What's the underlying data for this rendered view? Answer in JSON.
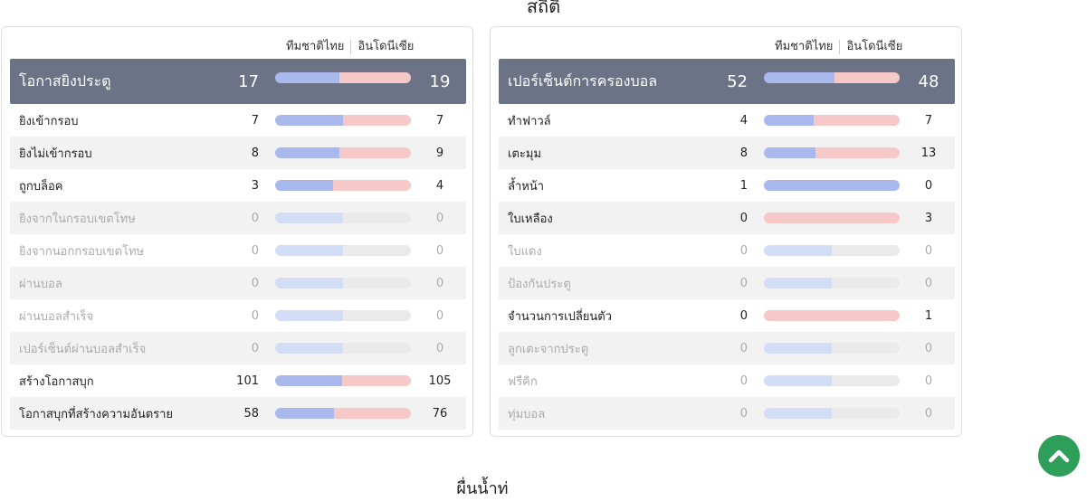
{
  "title": "สถิติ",
  "next_title": "ผื่นน้ำท่",
  "team_left": "ทีมชาติไทย",
  "team_right": "อินโดนีเซีย",
  "colors": {
    "left": "#a9b9ee",
    "right": "#f7c8c8",
    "header": "#6c7387",
    "button": "#2e9e5b"
  },
  "panels": [
    {
      "header": {
        "label": "โอกาสยิงประตู",
        "left": "17",
        "right": "19"
      },
      "rows": [
        {
          "label": "ยิงเข้ากรอบ",
          "left": "7",
          "right": "7"
        },
        {
          "label": "ยิงไม่เข้ากรอบ",
          "left": "8",
          "right": "9"
        },
        {
          "label": "ถูกบล็อค",
          "left": "3",
          "right": "4"
        },
        {
          "label": "ยิงจากในกรอบเขตโทษ",
          "left": "0",
          "right": "0"
        },
        {
          "label": "ยิงจากนอกกรอบเขตโทษ",
          "left": "0",
          "right": "0"
        },
        {
          "label": "ผ่านบอล",
          "left": "0",
          "right": "0"
        },
        {
          "label": "ผ่านบอลสำเร็จ",
          "left": "0",
          "right": "0"
        },
        {
          "label": "เปอร์เซ็นต์ผ่านบอลสำเร็จ",
          "left": "0",
          "right": "0"
        },
        {
          "label": "สร้างโอกาสบุก",
          "left": "101",
          "right": "105"
        },
        {
          "label": "โอกาสบุกที่สร้างความอันตราย",
          "left": "58",
          "right": "76"
        }
      ]
    },
    {
      "header": {
        "label": "เปอร์เซ็นต์การครองบอล",
        "left": "52",
        "right": "48"
      },
      "rows": [
        {
          "label": "ทำฟาวล์",
          "left": "4",
          "right": "7"
        },
        {
          "label": "เตะมุม",
          "left": "8",
          "right": "13"
        },
        {
          "label": "ล้ำหน้า",
          "left": "1",
          "right": "0"
        },
        {
          "label": "ใบเหลือง",
          "left": "0",
          "right": "3"
        },
        {
          "label": "ใบแดง",
          "left": "0",
          "right": "0"
        },
        {
          "label": "ป้องกันประตู",
          "left": "0",
          "right": "0"
        },
        {
          "label": "จำนวนการเปลี่ยนตัว",
          "left": "0",
          "right": "1"
        },
        {
          "label": "ลูกเตะจากประตู",
          "left": "0",
          "right": "0"
        },
        {
          "label": "ฟรีคิก",
          "left": "0",
          "right": "0"
        },
        {
          "label": "ทุ่มบอล",
          "left": "0",
          "right": "0"
        }
      ]
    }
  ],
  "scroll_top_icon": "chevron-up-icon"
}
